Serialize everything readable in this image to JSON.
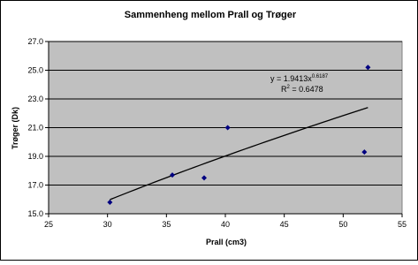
{
  "chart_data": {
    "type": "scatter",
    "title": "Sammenheng mellom Prall og Trøger",
    "x_label": "Prall (cm3)",
    "y_label": "Trøger (Dk)",
    "series": [
      {
        "name": "Trøger",
        "color": "#000080",
        "x": [
          30.2,
          35.5,
          38.2,
          40.2,
          51.8,
          52.1
        ],
        "values": [
          15.8,
          17.7,
          17.5,
          21.0,
          19.3,
          25.2
        ]
      }
    ],
    "trendline": {
      "type": "power",
      "coefficient": 1.9413,
      "exponent": 0.6187,
      "r_squared": 0.6478,
      "color": "#000000",
      "equation_text": "y = 1.9413x",
      "equation_exponent_text": "0.6187",
      "r_squared_text": "R",
      "r_squared_superscript": "2",
      "r_squared_value_text": " = 0.6478"
    },
    "xlim": [
      25,
      55
    ],
    "xticks": [
      25,
      30,
      35,
      40,
      45,
      50,
      55
    ],
    "ylim": [
      15,
      27
    ],
    "yticks": [
      {
        "value": 15,
        "label": "15.0"
      },
      {
        "value": 17,
        "label": "17.0"
      },
      {
        "value": 19,
        "label": "19.0"
      },
      {
        "value": 21,
        "label": "21.0"
      },
      {
        "value": 23,
        "label": "23.0"
      },
      {
        "value": 25,
        "label": "25.0"
      },
      {
        "value": 27,
        "label": "27.0"
      }
    ],
    "grid": true,
    "plot_background": "#c0c0c0"
  }
}
